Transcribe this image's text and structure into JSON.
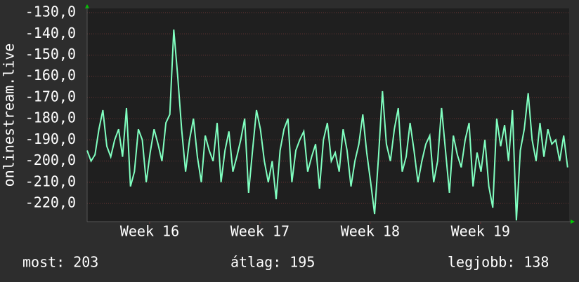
{
  "chart_data": {
    "type": "line",
    "y_label": "onlinestream.live",
    "x": [
      0,
      0.25,
      0.5,
      0.75,
      1,
      1.25,
      1.5,
      1.75,
      2,
      2.25,
      2.5,
      2.75,
      3,
      3.25,
      3.5,
      3.75,
      4,
      4.25,
      4.5,
      4.75,
      5,
      5.25,
      5.5,
      5.75,
      6,
      6.25,
      6.5,
      6.75,
      7,
      7.25,
      7.5,
      7.75,
      8,
      8.25,
      8.5,
      8.75,
      9,
      9.25,
      9.5,
      9.75,
      10,
      10.25,
      10.5,
      10.75,
      11,
      11.25,
      11.5,
      11.75,
      12,
      12.25,
      12.5,
      12.75,
      13,
      13.25,
      13.5,
      13.75,
      14,
      14.25,
      14.5,
      14.75,
      15,
      15.25,
      15.5,
      15.75,
      16,
      16.25,
      16.5,
      16.75,
      17,
      17.25,
      17.5,
      17.75,
      18,
      18.25,
      18.5,
      18.75,
      19,
      19.25,
      19.5,
      19.75,
      20,
      20.25,
      20.5,
      20.75,
      21,
      21.25,
      21.5,
      21.75,
      22,
      22.25,
      22.5,
      22.75,
      23,
      23.25,
      23.5,
      23.75,
      24,
      24.25,
      24.5,
      24.75,
      25,
      25.25,
      25.5,
      25.75,
      26,
      26.25,
      26.5,
      26.75,
      27,
      27.25,
      27.5,
      27.75,
      28,
      28.25,
      28.5,
      28.75,
      29,
      29.25,
      29.5,
      29.75,
      30,
      30.25,
      30.5
    ],
    "series": [
      {
        "color": "#80ffc0",
        "values": [
          -195,
          -200,
          -197,
          -185,
          -176,
          -193,
          -198,
          -190,
          -185,
          -198,
          -175,
          -212,
          -205,
          -185,
          -190,
          -210,
          -196,
          -185,
          -192,
          -200,
          -182,
          -178,
          -138,
          -160,
          -185,
          -205,
          -190,
          -180,
          -198,
          -210,
          -188,
          -195,
          -200,
          -182,
          -210,
          -195,
          -186,
          -205,
          -198,
          -190,
          -180,
          -215,
          -195,
          -176,
          -185,
          -200,
          -210,
          -200,
          -218,
          -195,
          -185,
          -180,
          -210,
          -195,
          -190,
          -186,
          -205,
          -198,
          -192,
          -213,
          -190,
          -182,
          -200,
          -196,
          -205,
          -185,
          -195,
          -212,
          -200,
          -192,
          -178,
          -196,
          -210,
          -225,
          -198,
          -167,
          -192,
          -200,
          -185,
          -175,
          -205,
          -198,
          -182,
          -195,
          -210,
          -200,
          -192,
          -188,
          -210,
          -200,
          -175,
          -195,
          -215,
          -188,
          -197,
          -203,
          -190,
          -182,
          -212,
          -196,
          -205,
          -190,
          -212,
          -222,
          -180,
          -193,
          -183,
          -200,
          -176,
          -228,
          -195,
          -185,
          -168,
          -190,
          -200,
          -182,
          -198,
          -185,
          -192,
          -190,
          -200,
          -188,
          -203
        ]
      }
    ],
    "xlim": [
      0,
      30.6
    ],
    "xticks": [
      {
        "value": 3.97,
        "label": "Week 16"
      },
      {
        "value": 10.97,
        "label": "Week 17"
      },
      {
        "value": 17.97,
        "label": "Week 18"
      },
      {
        "value": 24.97,
        "label": "Week 19"
      }
    ],
    "ylim": [
      -228.6,
      -128
    ],
    "yticks": [
      {
        "value": -130,
        "label": "-130,0"
      },
      {
        "value": -140,
        "label": "-140,0"
      },
      {
        "value": -150,
        "label": "-150,0"
      },
      {
        "value": -160,
        "label": "-160,0"
      },
      {
        "value": -170,
        "label": "-170,0"
      },
      {
        "value": -180,
        "label": "-180,0"
      },
      {
        "value": -190,
        "label": "-190,0"
      },
      {
        "value": -200,
        "label": "-200,0"
      },
      {
        "value": -210,
        "label": "-210,0"
      },
      {
        "value": -220,
        "label": "-220,0"
      }
    ],
    "grid": true,
    "stats": [
      {
        "label": "most:",
        "value": 203
      },
      {
        "label": "átlag:",
        "value": 195
      },
      {
        "label": "legjobb:",
        "value": 138
      }
    ]
  }
}
